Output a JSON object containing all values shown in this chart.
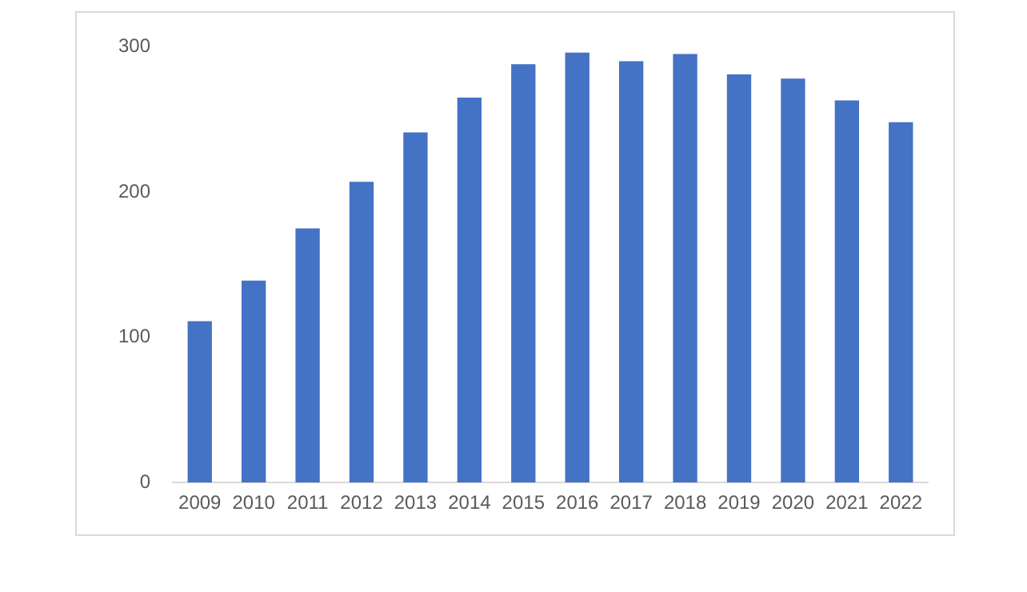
{
  "chart_data": {
    "type": "bar",
    "categories": [
      "2009",
      "2010",
      "2011",
      "2012",
      "2013",
      "2014",
      "2015",
      "2016",
      "2017",
      "2018",
      "2019",
      "2020",
      "2021",
      "2022"
    ],
    "values": [
      111,
      139,
      175,
      207,
      241,
      265,
      288,
      296,
      290,
      295,
      281,
      278,
      263,
      248
    ],
    "color": "#4472c4",
    "ylim": [
      0,
      300
    ],
    "yticks": [
      0,
      100,
      200,
      300
    ],
    "grid": false,
    "legend": false
  }
}
